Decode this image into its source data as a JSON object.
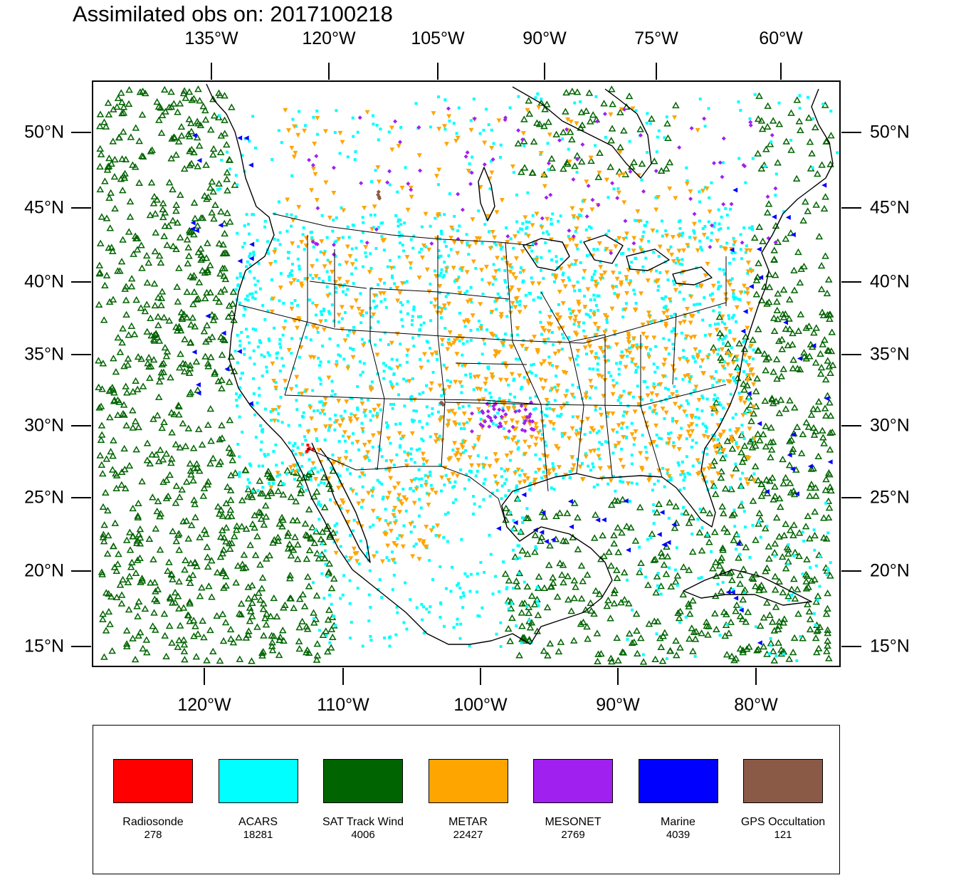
{
  "title": "Assimilated obs on: 2017100218",
  "axes": {
    "top_lon_labels": [
      "135°W",
      "120°W",
      "105°W",
      "90°W",
      "75°W",
      "60°W"
    ],
    "bottom_lon_labels": [
      "120°W",
      "110°W",
      "100°W",
      "90°W",
      "80°W"
    ],
    "lat_labels": [
      "50°N",
      "45°N",
      "40°N",
      "35°N",
      "30°N",
      "25°N",
      "20°N",
      "15°N"
    ]
  },
  "legend": [
    {
      "name": "Radiosonde",
      "count": "278",
      "color": "#ff0000"
    },
    {
      "name": "ACARS",
      "count": "18281",
      "color": "#00ffff"
    },
    {
      "name": "SAT Track Wind",
      "count": "4006",
      "color": "#006400"
    },
    {
      "name": "METAR",
      "count": "22427",
      "color": "#ffa500"
    },
    {
      "name": "MESONET",
      "count": "2769",
      "color": "#a020f0"
    },
    {
      "name": "Marine",
      "count": "4039",
      "color": "#0000ff"
    },
    {
      "name": "GPS Occultation",
      "count": "121",
      "color": "#8b5a46"
    }
  ]
}
